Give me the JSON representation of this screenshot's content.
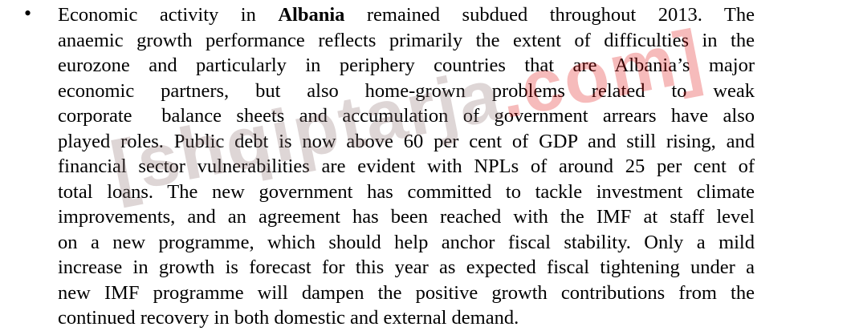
{
  "bullet": {
    "lines": [
      [
        "Economic activity in ",
        "Albania",
        " remained subdued throughout 2013. The"
      ],
      "anaemic growth performance reflects primarily the extent of difficulties in the",
      "eurozone and particularly in periphery countries that are Albania’s major",
      "economic partners, but also home-grown problems related to weak",
      "corporate  balance sheets and accumulation of government arrears have also",
      "played roles. Public debt is now above 60 per cent of GDP and still rising, and",
      "financial sector vulnerabilities are evident with NPLs of around 25 per cent of",
      "total loans. The new government has committed to tackle investment climate",
      "improvements, and an agreement has been reached with the IMF at staff level",
      "on a new programme, which should help anchor fiscal stability. Only a mild",
      "increase in growth is forecast for this year as expected fiscal tightening under a",
      "new IMF programme will dampen the positive growth contributions from the",
      "continued recovery in both domestic and external demand."
    ]
  },
  "watermark": {
    "main": "[shqiptarja",
    "suffix": ".com]"
  }
}
